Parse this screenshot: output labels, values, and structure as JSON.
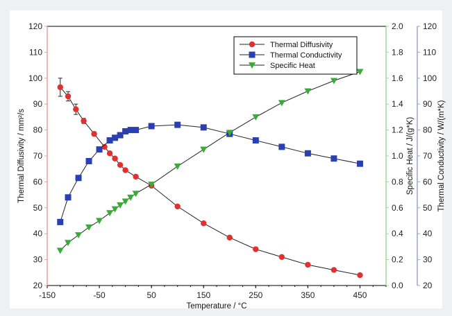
{
  "chart_data": {
    "type": "line",
    "xlabel": "Temperature / °C",
    "x_range": [
      -150,
      500
    ],
    "x_ticks": [
      -150,
      -50,
      50,
      150,
      250,
      350,
      450
    ],
    "axes": {
      "left": {
        "label": "Thermal Diffusivity / mm²/s",
        "range": [
          20,
          120
        ],
        "ticks": [
          20,
          30,
          40,
          50,
          60,
          70,
          80,
          90,
          100,
          110,
          120
        ],
        "color": "#e8a0a0"
      },
      "right_inner": {
        "label": "Specific Heat / J/(g*K)",
        "range": [
          0.0,
          2.0
        ],
        "ticks": [
          "0.0",
          "0.2",
          "0.4",
          "0.6",
          "0.8",
          "1.0",
          "1.2",
          "1.4",
          "1.6",
          "1.8",
          "2.0"
        ],
        "color": "#9ed99e"
      },
      "right_outer": {
        "label": "Thermal Conductivity / W/(m*K)",
        "range": [
          20,
          120
        ],
        "ticks": [
          20,
          30,
          40,
          50,
          60,
          70,
          80,
          90,
          100,
          110,
          120
        ],
        "color": "#9aa3d6"
      }
    },
    "legend_position": "top-right",
    "series": [
      {
        "name": "Thermal Diffusivity",
        "axis": "left",
        "marker": "circle",
        "color": "#e03030",
        "x": [
          -125,
          -110,
          -95,
          -80,
          -60,
          -40,
          -30,
          -20,
          -10,
          0,
          20,
          50,
          100,
          150,
          200,
          250,
          300,
          350,
          400,
          450
        ],
        "y": [
          96.5,
          93,
          88,
          83.5,
          78.5,
          73.5,
          71,
          69,
          66.5,
          64.5,
          62,
          58.5,
          50.5,
          44,
          38.5,
          34,
          31,
          28,
          26,
          24
        ],
        "error": [
          3.5,
          1.8,
          2,
          1,
          0.8,
          0,
          0,
          0,
          0,
          0,
          0,
          0,
          0,
          0,
          0,
          0,
          0,
          0,
          0,
          0
        ]
      },
      {
        "name": "Thermal Conductivity",
        "axis": "right_outer",
        "marker": "square",
        "color": "#2a3fb0",
        "x": [
          -125,
          -110,
          -90,
          -70,
          -50,
          -30,
          -20,
          -10,
          0,
          10,
          20,
          50,
          100,
          150,
          200,
          250,
          300,
          350,
          400,
          450
        ],
        "y": [
          44.5,
          54,
          61.5,
          68,
          72.5,
          76,
          77,
          78,
          79.5,
          80,
          80,
          81.5,
          82,
          81,
          78.5,
          76,
          73.5,
          71,
          69,
          67
        ]
      },
      {
        "name": "Specific Heat",
        "axis": "right_inner",
        "marker": "triangle-down",
        "color": "#3aaa3a",
        "x": [
          -125,
          -110,
          -90,
          -70,
          -50,
          -30,
          -20,
          -10,
          0,
          10,
          20,
          50,
          100,
          150,
          200,
          250,
          300,
          350,
          400,
          450
        ],
        "y": [
          0.27,
          0.33,
          0.39,
          0.45,
          0.5,
          0.56,
          0.59,
          0.62,
          0.65,
          0.68,
          0.71,
          0.78,
          0.92,
          1.05,
          1.18,
          1.3,
          1.41,
          1.5,
          1.58,
          1.65
        ]
      }
    ]
  }
}
